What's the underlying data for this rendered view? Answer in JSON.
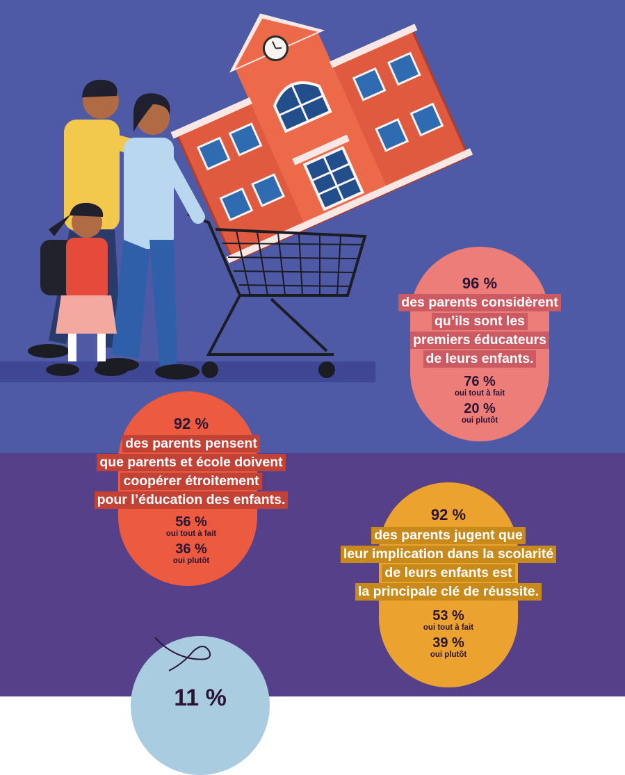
{
  "colors": {
    "top_background": "#4e5aa6",
    "bottom_background": "#56408a",
    "floor": "#3f4795",
    "stat1_circle": "#ec7d79",
    "stat1_label_bg": "#cc5a63",
    "stat2_circle": "#ec5a3f",
    "stat2_label_bg": "#c34236",
    "stat3_circle": "#eca22f",
    "stat3_label_bg": "#c88a1a",
    "stat4_circle": "#a9cce0"
  },
  "illustration": {
    "icons": [
      "school-building-icon",
      "shopping-cart-icon",
      "father-icon",
      "mother-icon",
      "child-with-backpack-icon"
    ]
  },
  "stats": [
    {
      "percent": "96 %",
      "lines": [
        "des parents considèrent",
        "qu’ils sont les",
        "premiers éducateurs",
        "de leurs enfants."
      ],
      "breakdown": [
        {
          "value": "76 %",
          "label": "oui tout à fait"
        },
        {
          "value": "20 %",
          "label": "oui plutôt"
        }
      ]
    },
    {
      "percent": "92 %",
      "lines": [
        "des parents pensent",
        "que parents et école doivent",
        "coopérer étroitement",
        "pour l’éducation des enfants."
      ],
      "breakdown": [
        {
          "value": "56 %",
          "label": "oui tout à fait"
        },
        {
          "value": "36 %",
          "label": "oui plutôt"
        }
      ]
    },
    {
      "percent": "92 %",
      "lines": [
        "des parents jugent que",
        "leur implication dans la scolarité",
        "de leurs enfants est",
        "la principale clé de réussite."
      ],
      "breakdown": [
        {
          "value": "53 %",
          "label": "oui tout à fait"
        },
        {
          "value": "39 %",
          "label": "oui plutôt"
        }
      ]
    },
    {
      "percent": "11 %"
    }
  ]
}
